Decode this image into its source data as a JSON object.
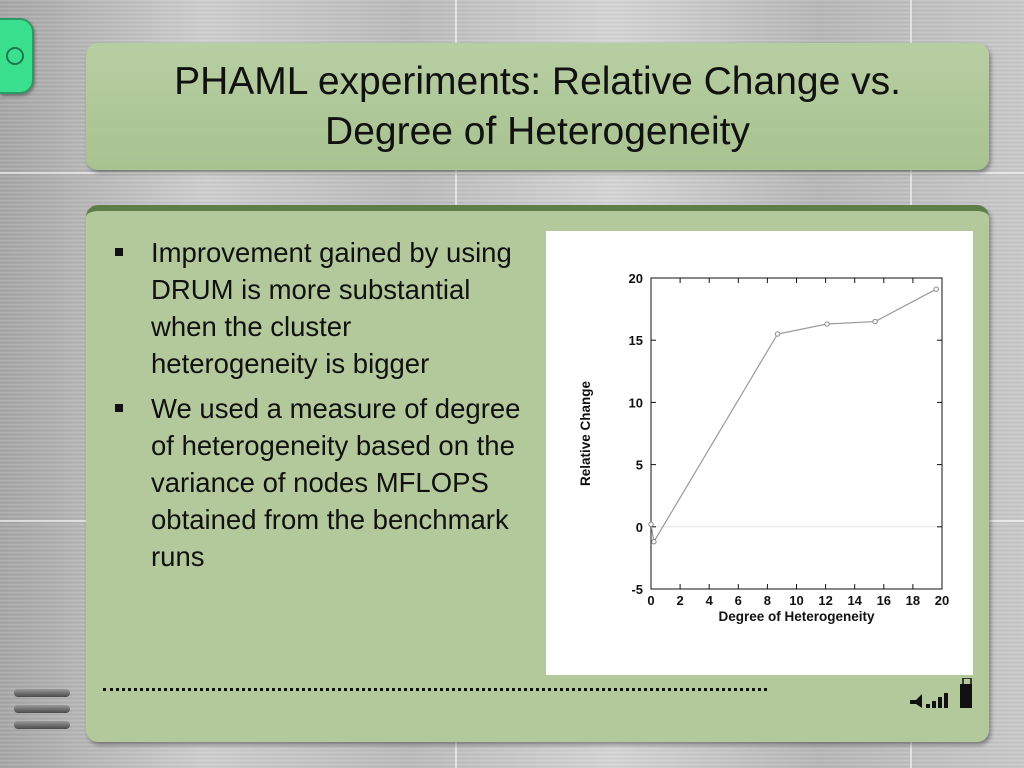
{
  "slide": {
    "title": "PHAML experiments: Relative Change vs. Degree of Heterogeneity",
    "bullets": [
      "Improvement gained by using DRUM is more substantial when the cluster heterogeneity is bigger",
      "We used a measure of degree of heterogeneity based on the variance of nodes MFLOPS obtained from the benchmark runs"
    ],
    "icons": {
      "corner_tab": "circle-tab-icon",
      "menu": "hamburger-menu-icon",
      "sound": "speaker-volume-icon"
    },
    "colors": {
      "panel": "#b3c99c",
      "panel_border": "#5e7e47",
      "tab": "#3be08f",
      "series_line": "#9a9a9a"
    }
  },
  "chart_data": {
    "type": "line",
    "xlabel": "Degree of Heterogeneity",
    "ylabel": "Relative Change",
    "xlim": [
      0,
      20
    ],
    "ylim": [
      -5,
      20
    ],
    "xticks": [
      0,
      2,
      4,
      6,
      8,
      10,
      12,
      14,
      16,
      18,
      20
    ],
    "yticks": [
      -5,
      0,
      5,
      10,
      15,
      20
    ],
    "series": [
      {
        "x": [
          0,
          0.2,
          8.7,
          12.1,
          15.4,
          19.6
        ],
        "y": [
          0.2,
          -1.2,
          15.5,
          16.3,
          16.5,
          19.1
        ]
      }
    ],
    "grid": false,
    "reference_line_y": 0
  }
}
